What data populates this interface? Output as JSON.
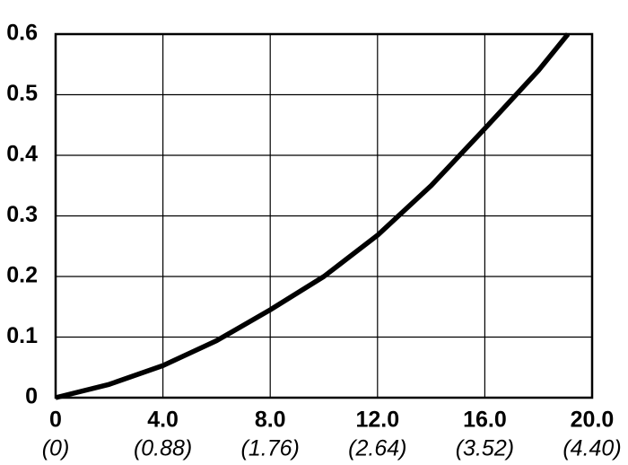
{
  "chart_data": {
    "type": "line",
    "x": [
      0,
      2,
      4,
      6,
      8,
      10,
      12,
      14,
      16,
      18,
      19.1
    ],
    "series": [
      {
        "color": "#000000",
        "values": [
          0,
          0.022,
          0.053,
          0.094,
          0.145,
          0.2,
          0.268,
          0.35,
          0.444,
          0.54,
          0.6
        ]
      }
    ],
    "xlim": [
      0,
      20
    ],
    "xticks": [
      0,
      {
        "value": 4,
        "label": "4.0"
      },
      {
        "value": 8,
        "label": "8.0"
      },
      {
        "value": 12,
        "label": "12.0"
      },
      {
        "value": 16,
        "label": "16.0"
      },
      {
        "value": 20,
        "label": "20.0"
      }
    ],
    "secondary_xtick_labels": [
      "(0)",
      "(0.88)",
      "(1.76)",
      "(2.64)",
      "(3.52)",
      "(4.40)"
    ],
    "ylim": [
      0,
      0.6
    ],
    "yticks": [
      0,
      0.1,
      0.2,
      0.3,
      0.4,
      0.5,
      0.6
    ],
    "grid": true
  }
}
